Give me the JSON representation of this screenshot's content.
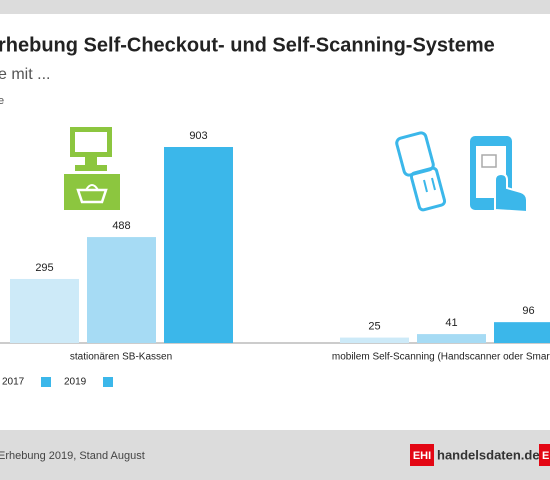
{
  "chart_data": {
    "type": "bar",
    "title": "rhebung Self-Checkout- und Self-Scanning-Systeme",
    "subtitle": "e mit ...",
    "note": "e",
    "categories": [
      "stationären SB-Kassen",
      "mobilem Self-Scanning (Handscanner oder Smartp"
    ],
    "series": [
      {
        "name": null,
        "color": "#cdeaf8",
        "values": [
          295,
          25
        ]
      },
      {
        "name": "2017",
        "color": "#a6dbf4",
        "values": [
          488,
          41
        ]
      },
      {
        "name": "2019",
        "color": "#3bb7ea",
        "values": [
          903,
          96
        ]
      }
    ]
  },
  "footer": {
    "source": "Erhebung 2019, Stand August",
    "logo": "EHI",
    "site": "handelsdaten.de",
    "logo2": "E"
  }
}
